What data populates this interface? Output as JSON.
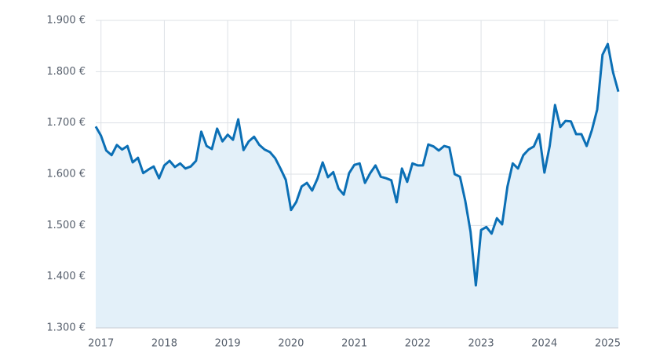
{
  "chart_data": {
    "type": "line",
    "x": [
      2016.917,
      2017.0,
      2017.083,
      2017.167,
      2017.25,
      2017.333,
      2017.417,
      2017.5,
      2017.583,
      2017.667,
      2017.75,
      2017.833,
      2017.917,
      2018.0,
      2018.083,
      2018.167,
      2018.25,
      2018.333,
      2018.417,
      2018.5,
      2018.583,
      2018.667,
      2018.75,
      2018.833,
      2018.917,
      2019.0,
      2019.083,
      2019.167,
      2019.25,
      2019.333,
      2019.417,
      2019.5,
      2019.583,
      2019.667,
      2019.75,
      2019.833,
      2019.917,
      2020.0,
      2020.083,
      2020.167,
      2020.25,
      2020.333,
      2020.417,
      2020.5,
      2020.583,
      2020.667,
      2020.75,
      2020.833,
      2020.917,
      2021.0,
      2021.083,
      2021.167,
      2021.25,
      2021.333,
      2021.417,
      2021.5,
      2021.583,
      2021.667,
      2021.75,
      2021.833,
      2021.917,
      2022.0,
      2022.083,
      2022.167,
      2022.25,
      2022.333,
      2022.417,
      2022.5,
      2022.583,
      2022.667,
      2022.75,
      2022.833,
      2022.917,
      2023.0,
      2023.083,
      2023.167,
      2023.25,
      2023.333,
      2023.417,
      2023.5,
      2023.583,
      2023.667,
      2023.75,
      2023.833,
      2023.917,
      2024.0,
      2024.083,
      2024.167,
      2024.25,
      2024.333,
      2024.417,
      2024.5,
      2024.583,
      2024.667,
      2024.75,
      2024.833,
      2024.917,
      2025.0,
      2025.083,
      2025.167
    ],
    "series": [
      {
        "color": "#0b6fb5",
        "fill": "#e3f0f9",
        "values": [
          1693,
          1675,
          1646,
          1637,
          1657,
          1648,
          1655,
          1623,
          1632,
          1602,
          1609,
          1615,
          1592,
          1617,
          1626,
          1614,
          1621,
          1611,
          1615,
          1626,
          1683,
          1655,
          1649,
          1689,
          1664,
          1677,
          1667,
          1707,
          1647,
          1664,
          1673,
          1657,
          1648,
          1643,
          1631,
          1611,
          1589,
          1530,
          1546,
          1576,
          1583,
          1568,
          1591,
          1623,
          1594,
          1604,
          1572,
          1560,
          1602,
          1618,
          1621,
          1583,
          1602,
          1617,
          1595,
          1592,
          1588,
          1545,
          1611,
          1585,
          1621,
          1617,
          1617,
          1658,
          1654,
          1646,
          1655,
          1652,
          1600,
          1595,
          1548,
          1488,
          1383,
          1491,
          1497,
          1484,
          1514,
          1502,
          1576,
          1621,
          1611,
          1637,
          1648,
          1654,
          1678,
          1603,
          1655,
          1735,
          1692,
          1704,
          1703,
          1678,
          1678,
          1655,
          1686,
          1726,
          1833,
          1854,
          1799,
          1761
        ]
      }
    ],
    "xlim": [
      2016.917,
      2025.167
    ],
    "xticks": [
      2017,
      2018,
      2019,
      2020,
      2021,
      2022,
      2023,
      2024,
      2025
    ],
    "ylim": [
      1300,
      1900
    ],
    "yticks": [
      {
        "value": 1300,
        "label": "1.300 €"
      },
      {
        "value": 1400,
        "label": "1.400 €"
      },
      {
        "value": 1500,
        "label": "1.500 €"
      },
      {
        "value": 1600,
        "label": "1.600 €"
      },
      {
        "value": 1700,
        "label": "1.700 €"
      },
      {
        "value": 1800,
        "label": "1.800 €"
      },
      {
        "value": 1900,
        "label": "1.900 €"
      }
    ],
    "grid": true
  }
}
